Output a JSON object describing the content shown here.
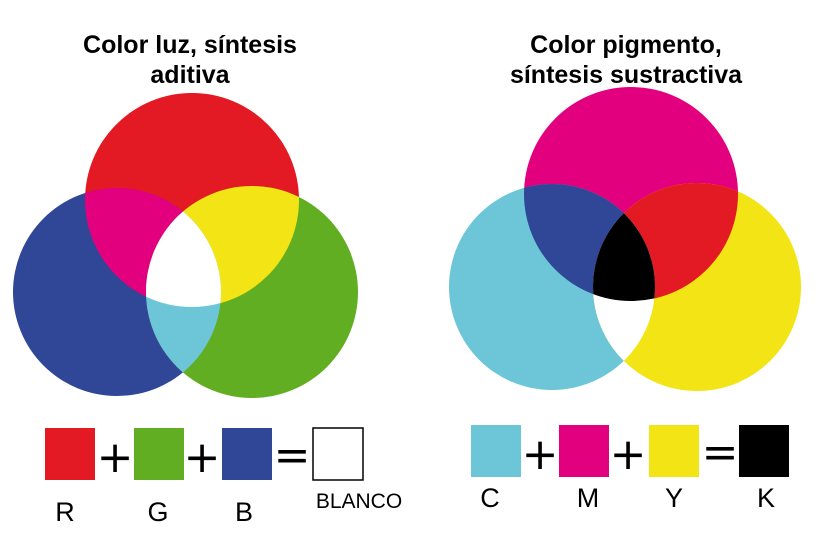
{
  "additive": {
    "title_line1": "Color luz, síntesis",
    "title_line2": "aditiva",
    "colors": {
      "red": "#e31a23",
      "green": "#62ae22",
      "blue": "#2f4796",
      "cyan": "#6cc6d8",
      "magenta": "#e3007e",
      "yellow": "#f2e415",
      "white": "#ffffff"
    },
    "legend": {
      "items": [
        {
          "label": "R",
          "color": "#e31a23"
        },
        {
          "label": "G",
          "color": "#62ae22"
        },
        {
          "label": "B",
          "color": "#2f4796"
        }
      ],
      "plus": "+",
      "equals": "=",
      "result": {
        "label": "BLANCO",
        "color": "#ffffff"
      }
    }
  },
  "subtractive": {
    "title_line1": "Color pigmento,",
    "title_line2": "síntesis sustractiva",
    "colors": {
      "cyan": "#6cc6d8",
      "magenta": "#e3007e",
      "yellow": "#f2e415",
      "red": "#e31a23",
      "blue": "#2f4796",
      "black": "#000000",
      "white": "#ffffff"
    },
    "legend": {
      "items": [
        {
          "label": "C",
          "color": "#6cc6d8"
        },
        {
          "label": "M",
          "color": "#e3007e"
        },
        {
          "label": "Y",
          "color": "#f2e415"
        }
      ],
      "plus": "+",
      "equals": "=",
      "result": {
        "label": "K",
        "color": "#000000"
      }
    }
  }
}
